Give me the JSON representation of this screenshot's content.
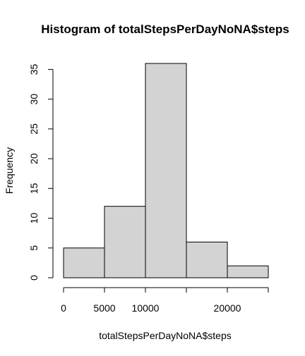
{
  "chart_data": {
    "type": "bar",
    "title": "Histogram of totalStepsPerDayNoNA$steps",
    "xlabel": "totalStepsPerDayNoNA$steps",
    "ylabel": "Frequency",
    "bins": [
      {
        "start": 0,
        "end": 5000,
        "count": 5
      },
      {
        "start": 5000,
        "end": 10000,
        "count": 12
      },
      {
        "start": 10000,
        "end": 15000,
        "count": 36
      },
      {
        "start": 15000,
        "end": 20000,
        "count": 6
      },
      {
        "start": 20000,
        "end": 25000,
        "count": 2
      }
    ],
    "xlim": [
      0,
      25000
    ],
    "ylim": [
      0,
      36
    ],
    "x_ticks": [
      0,
      5000,
      10000,
      15000,
      20000,
      25000
    ],
    "x_tick_labels": [
      "0",
      "5000",
      "10000",
      "",
      "20000",
      ""
    ],
    "y_ticks": [
      0,
      5,
      10,
      15,
      20,
      25,
      30,
      35
    ],
    "y_tick_labels": [
      "0",
      "5",
      "10",
      "15",
      "20",
      "25",
      "30",
      "35"
    ],
    "bar_color": "#d3d3d3",
    "grid": false,
    "legend": "none"
  }
}
